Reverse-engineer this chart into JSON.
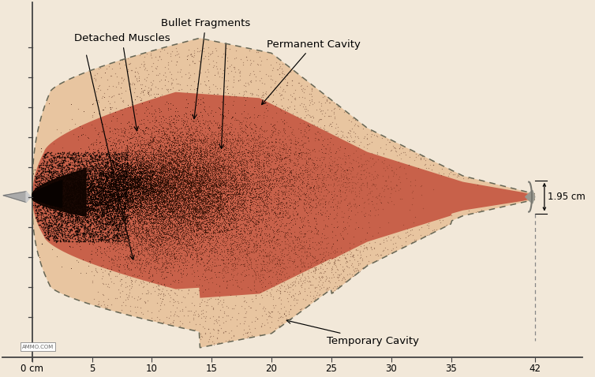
{
  "background_color": "#f2e8d9",
  "xlim": [
    -2.5,
    46
  ],
  "ylim": [
    -5.5,
    6.5
  ],
  "temp_cavity_color": "#e8c5a0",
  "perm_cavity_color": "#c8614a",
  "x_label_ticks": [
    "0 cm",
    "5",
    "10",
    "15",
    "20",
    "25",
    "30",
    "35",
    "42"
  ],
  "x_tick_positions": [
    0,
    5,
    10,
    15,
    20,
    25,
    30,
    35,
    42
  ],
  "measurement_text": "1.95 cm",
  "spine_color": "#444444",
  "dot_color_dark": "#1a0600",
  "dot_color_med": "#3a1005",
  "dot_color_light": "#5a2010"
}
